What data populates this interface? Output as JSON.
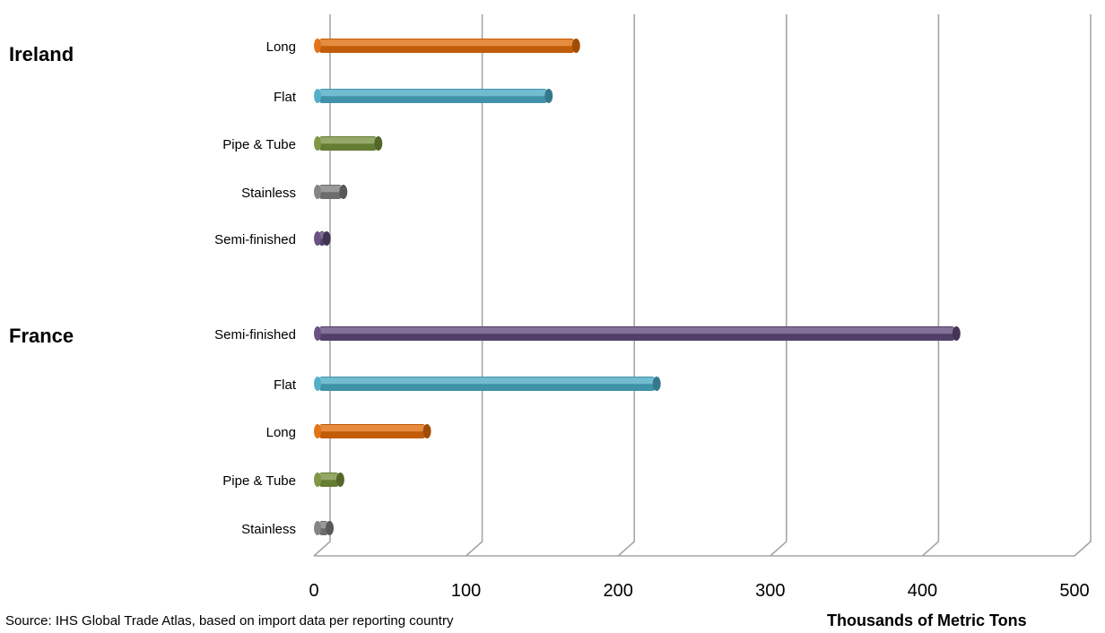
{
  "chart_data": {
    "type": "bar",
    "orientation": "horizontal",
    "xlim": [
      0,
      500
    ],
    "x_ticks": [
      "0",
      "100",
      "200",
      "300",
      "400",
      "500"
    ],
    "grid": true,
    "xlabel": "Thousands  of Metric Tons",
    "groups": [
      {
        "name": "Ireland",
        "bars": [
          {
            "category": "Long",
            "value": 170,
            "color": "#e36c09"
          },
          {
            "category": "Flat",
            "value": 152,
            "color": "#4bacc6"
          },
          {
            "category": "Pipe & Tube",
            "value": 40,
            "color": "#77933c"
          },
          {
            "category": "Stainless",
            "value": 17,
            "color": "#7f7f7f"
          },
          {
            "category": "Semi-finished",
            "value": 6,
            "color": "#604a7b"
          }
        ]
      },
      {
        "name": "France",
        "bars": [
          {
            "category": "Semi-finished",
            "value": 420,
            "color": "#604a7b"
          },
          {
            "category": "Flat",
            "value": 223,
            "color": "#4bacc6"
          },
          {
            "category": "Long",
            "value": 72,
            "color": "#e36c09"
          },
          {
            "category": "Pipe & Tube",
            "value": 15,
            "color": "#77933c"
          },
          {
            "category": "Stainless",
            "value": 8,
            "color": "#7f7f7f"
          }
        ]
      }
    ]
  },
  "footer": {
    "source": "Source: IHS Global Trade Atlas, based on import data per reporting country"
  }
}
